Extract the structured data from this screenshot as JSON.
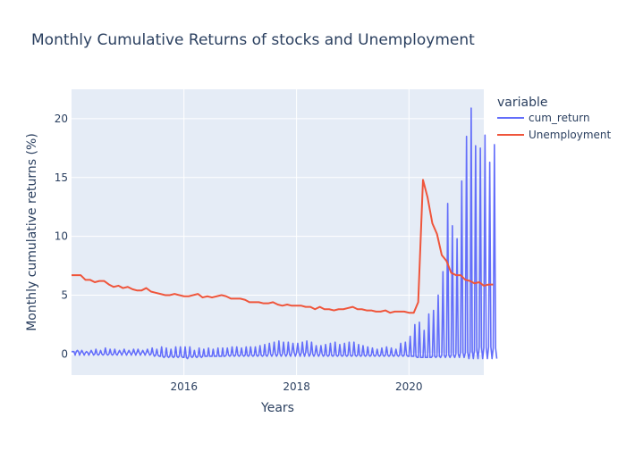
{
  "chart_data": {
    "type": "line",
    "title": "Monthly Cumulative Returns of stocks and Unemployment",
    "xlabel": "Years",
    "ylabel": "Monthly cumulative returns (%)",
    "xlim": [
      "2014-01-01",
      "2021-05-01"
    ],
    "ylim": [
      -1.8,
      22.5
    ],
    "x_ticks": [
      "2016",
      "2018",
      "2020"
    ],
    "y_ticks": [
      0,
      5,
      10,
      15,
      20
    ],
    "grid": true,
    "legend": {
      "title": "variable",
      "placement": "right"
    },
    "series": [
      {
        "name": "cum_return",
        "color": "#636efa",
        "note_marks": "oscillating daily cumulative return within each month (drawn as vertical spikes)",
        "monthly_peak": [
          0.2,
          0.3,
          0.3,
          0.2,
          0.3,
          0.4,
          0.3,
          0.5,
          0.4,
          0.4,
          0.3,
          0.4,
          0.3,
          0.4,
          0.4,
          0.3,
          0.4,
          0.5,
          0.4,
          0.6,
          0.5,
          0.4,
          0.6,
          0.6,
          0.6,
          0.6,
          0.3,
          0.5,
          0.4,
          0.5,
          0.4,
          0.5,
          0.5,
          0.5,
          0.6,
          0.6,
          0.5,
          0.6,
          0.6,
          0.6,
          0.7,
          0.8,
          0.9,
          1.0,
          1.1,
          1.0,
          1.0,
          0.9,
          0.9,
          1.0,
          1.1,
          1.0,
          0.7,
          0.7,
          0.8,
          0.9,
          1.0,
          0.8,
          0.9,
          1.0,
          1.0,
          0.8,
          0.7,
          0.6,
          0.5,
          0.4,
          0.5,
          0.6,
          0.5,
          0.4,
          0.9,
          1.0,
          1.5,
          2.5,
          2.7,
          2.0,
          3.4,
          3.7,
          5.0,
          7.0,
          12.8,
          10.9,
          9.8,
          14.7,
          18.5,
          20.9,
          17.7,
          17.5,
          18.6,
          16.3,
          17.8
        ],
        "monthly_trough": [
          -0.1,
          -0.1,
          -0.1,
          -0.1,
          -0.1,
          -0.1,
          -0.1,
          -0.1,
          -0.1,
          -0.1,
          -0.1,
          -0.1,
          -0.1,
          -0.1,
          -0.1,
          -0.1,
          -0.1,
          -0.2,
          -0.2,
          -0.3,
          -0.3,
          -0.3,
          -0.3,
          -0.3,
          -0.4,
          -0.3,
          -0.3,
          -0.3,
          -0.2,
          -0.2,
          -0.2,
          -0.2,
          -0.2,
          -0.2,
          -0.2,
          -0.2,
          -0.2,
          -0.2,
          -0.2,
          -0.2,
          -0.2,
          -0.2,
          -0.2,
          -0.2,
          -0.2,
          -0.2,
          -0.2,
          -0.2,
          -0.2,
          -0.2,
          -0.2,
          -0.2,
          -0.2,
          -0.2,
          -0.2,
          -0.2,
          -0.2,
          -0.2,
          -0.2,
          -0.2,
          -0.2,
          -0.2,
          -0.2,
          -0.2,
          -0.2,
          -0.2,
          -0.2,
          -0.2,
          -0.2,
          -0.2,
          -0.2,
          -0.2,
          -0.2,
          -0.3,
          -0.3,
          -0.3,
          -0.3,
          -0.3,
          -0.3,
          -0.3,
          -0.3,
          -0.3,
          -0.3,
          -0.3,
          -0.4,
          -0.4,
          -0.4,
          -0.4,
          -0.4,
          -0.4,
          -0.4
        ],
        "monthly_mean": [
          0.2,
          0.2,
          0.1,
          0.1,
          0.1,
          0.0,
          0.0,
          0.0,
          0.0,
          0.0,
          0.1,
          0.1,
          0.1,
          0.1,
          0.1,
          0.1,
          0.1,
          0.0,
          -0.1,
          -0.2,
          -0.2,
          -0.2,
          -0.2,
          -0.2,
          -0.3,
          -0.2,
          -0.2,
          -0.2,
          -0.2,
          -0.2,
          -0.2,
          -0.2,
          -0.2,
          -0.1,
          -0.1,
          -0.1,
          -0.1,
          -0.1,
          -0.1,
          -0.1,
          -0.1,
          -0.1,
          0.0,
          0.0,
          0.0,
          0.0,
          0.0,
          0.1,
          0.1,
          0.1,
          0.1,
          0.0,
          0.0,
          0.0,
          -0.1,
          -0.1,
          -0.1,
          -0.1,
          -0.1,
          -0.1,
          -0.1,
          -0.1,
          -0.1,
          -0.1,
          -0.1,
          -0.1,
          -0.1,
          -0.1,
          -0.1,
          -0.1,
          -0.1,
          -0.1,
          -0.2,
          -0.2,
          -0.3,
          -0.3,
          -0.3,
          -0.2,
          -0.2,
          -0.1,
          -0.1,
          -0.1,
          0.0,
          0.1,
          0.1,
          0.2,
          0.3,
          0.6,
          0.5,
          0.6,
          0.5
        ]
      },
      {
        "name": "Unemployment",
        "color": "#ef553b",
        "values": [
          6.7,
          6.7,
          6.7,
          6.3,
          6.3,
          6.1,
          6.2,
          6.2,
          5.9,
          5.7,
          5.8,
          5.6,
          5.7,
          5.5,
          5.4,
          5.4,
          5.6,
          5.3,
          5.2,
          5.1,
          5.0,
          5.0,
          5.1,
          5.0,
          4.9,
          4.9,
          5.0,
          5.1,
          4.8,
          4.9,
          4.8,
          4.9,
          5.0,
          4.9,
          4.7,
          4.7,
          4.7,
          4.6,
          4.4,
          4.4,
          4.4,
          4.3,
          4.3,
          4.4,
          4.2,
          4.1,
          4.2,
          4.1,
          4.1,
          4.1,
          4.0,
          4.0,
          3.8,
          4.0,
          3.8,
          3.8,
          3.7,
          3.8,
          3.8,
          3.9,
          4.0,
          3.8,
          3.8,
          3.7,
          3.7,
          3.6,
          3.6,
          3.7,
          3.5,
          3.6,
          3.6,
          3.6,
          3.5,
          3.5,
          4.4,
          14.8,
          13.3,
          11.1,
          10.2,
          8.4,
          7.9,
          6.9,
          6.7,
          6.7,
          6.3,
          6.2,
          6.0,
          6.1,
          5.8,
          5.9,
          5.9
        ]
      }
    ]
  }
}
